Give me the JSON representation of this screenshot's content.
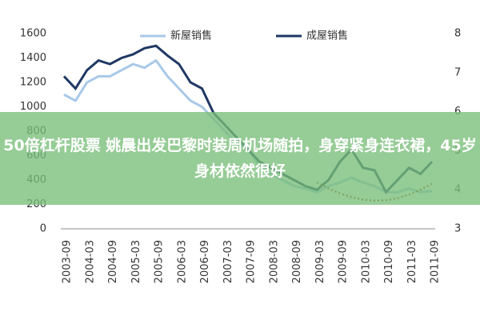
{
  "chart_data": {
    "type": "line",
    "categories": [
      "2003-09",
      null,
      "2004-03",
      null,
      "2004-09",
      null,
      "2005-03",
      null,
      "2005-09",
      null,
      "2006-03",
      null,
      "2006-09",
      null,
      "2007-03",
      null,
      "2007-09",
      null,
      "2008-03",
      null,
      "2008-09",
      null,
      "2009-03",
      null,
      "2009-09",
      null,
      "2010-03",
      null,
      "2010-09",
      null,
      "2011-03",
      null,
      "2011-09"
    ],
    "series": [
      {
        "name": "新屋销售",
        "color": "#a9c9e8",
        "values": [
          1100,
          1050,
          1200,
          1250,
          1250,
          1300,
          1350,
          1320,
          1380,
          1250,
          1150,
          1050,
          1000,
          900,
          800,
          700,
          650,
          520,
          450,
          400,
          350,
          330,
          300,
          350,
          380,
          420,
          380,
          350,
          300,
          300,
          330,
          300,
          310
        ]
      },
      {
        "name": "成屋销售",
        "color": "#1f3864",
        "values": [
          1250,
          1150,
          1300,
          1380,
          1350,
          1400,
          1430,
          1480,
          1500,
          1420,
          1350,
          1200,
          1150,
          950,
          850,
          750,
          650,
          550,
          500,
          450,
          400,
          350,
          320,
          400,
          550,
          650,
          500,
          480,
          300,
          400,
          500,
          450,
          550
        ]
      },
      {
        "color": "#8b5a2b",
        "dotted": true,
        "values": [
          null,
          null,
          null,
          null,
          null,
          null,
          null,
          null,
          null,
          null,
          null,
          null,
          null,
          null,
          null,
          null,
          null,
          null,
          null,
          null,
          null,
          null,
          380,
          330,
          290,
          260,
          240,
          230,
          235,
          250,
          280,
          320,
          370
        ]
      }
    ],
    "ylim": [
      0,
      1600
    ],
    "yticks": [
      0,
      200,
      400,
      600,
      800,
      1000,
      1200,
      1400,
      1600
    ],
    "y2lim": [
      3,
      8
    ],
    "y2ticks": [
      3,
      4,
      5,
      6,
      7,
      8
    ],
    "banner": "50倍杠杆股票 姚晨出发巴黎时装周机场随拍，身穿紧身连衣裙，45岁身材依然很好"
  }
}
